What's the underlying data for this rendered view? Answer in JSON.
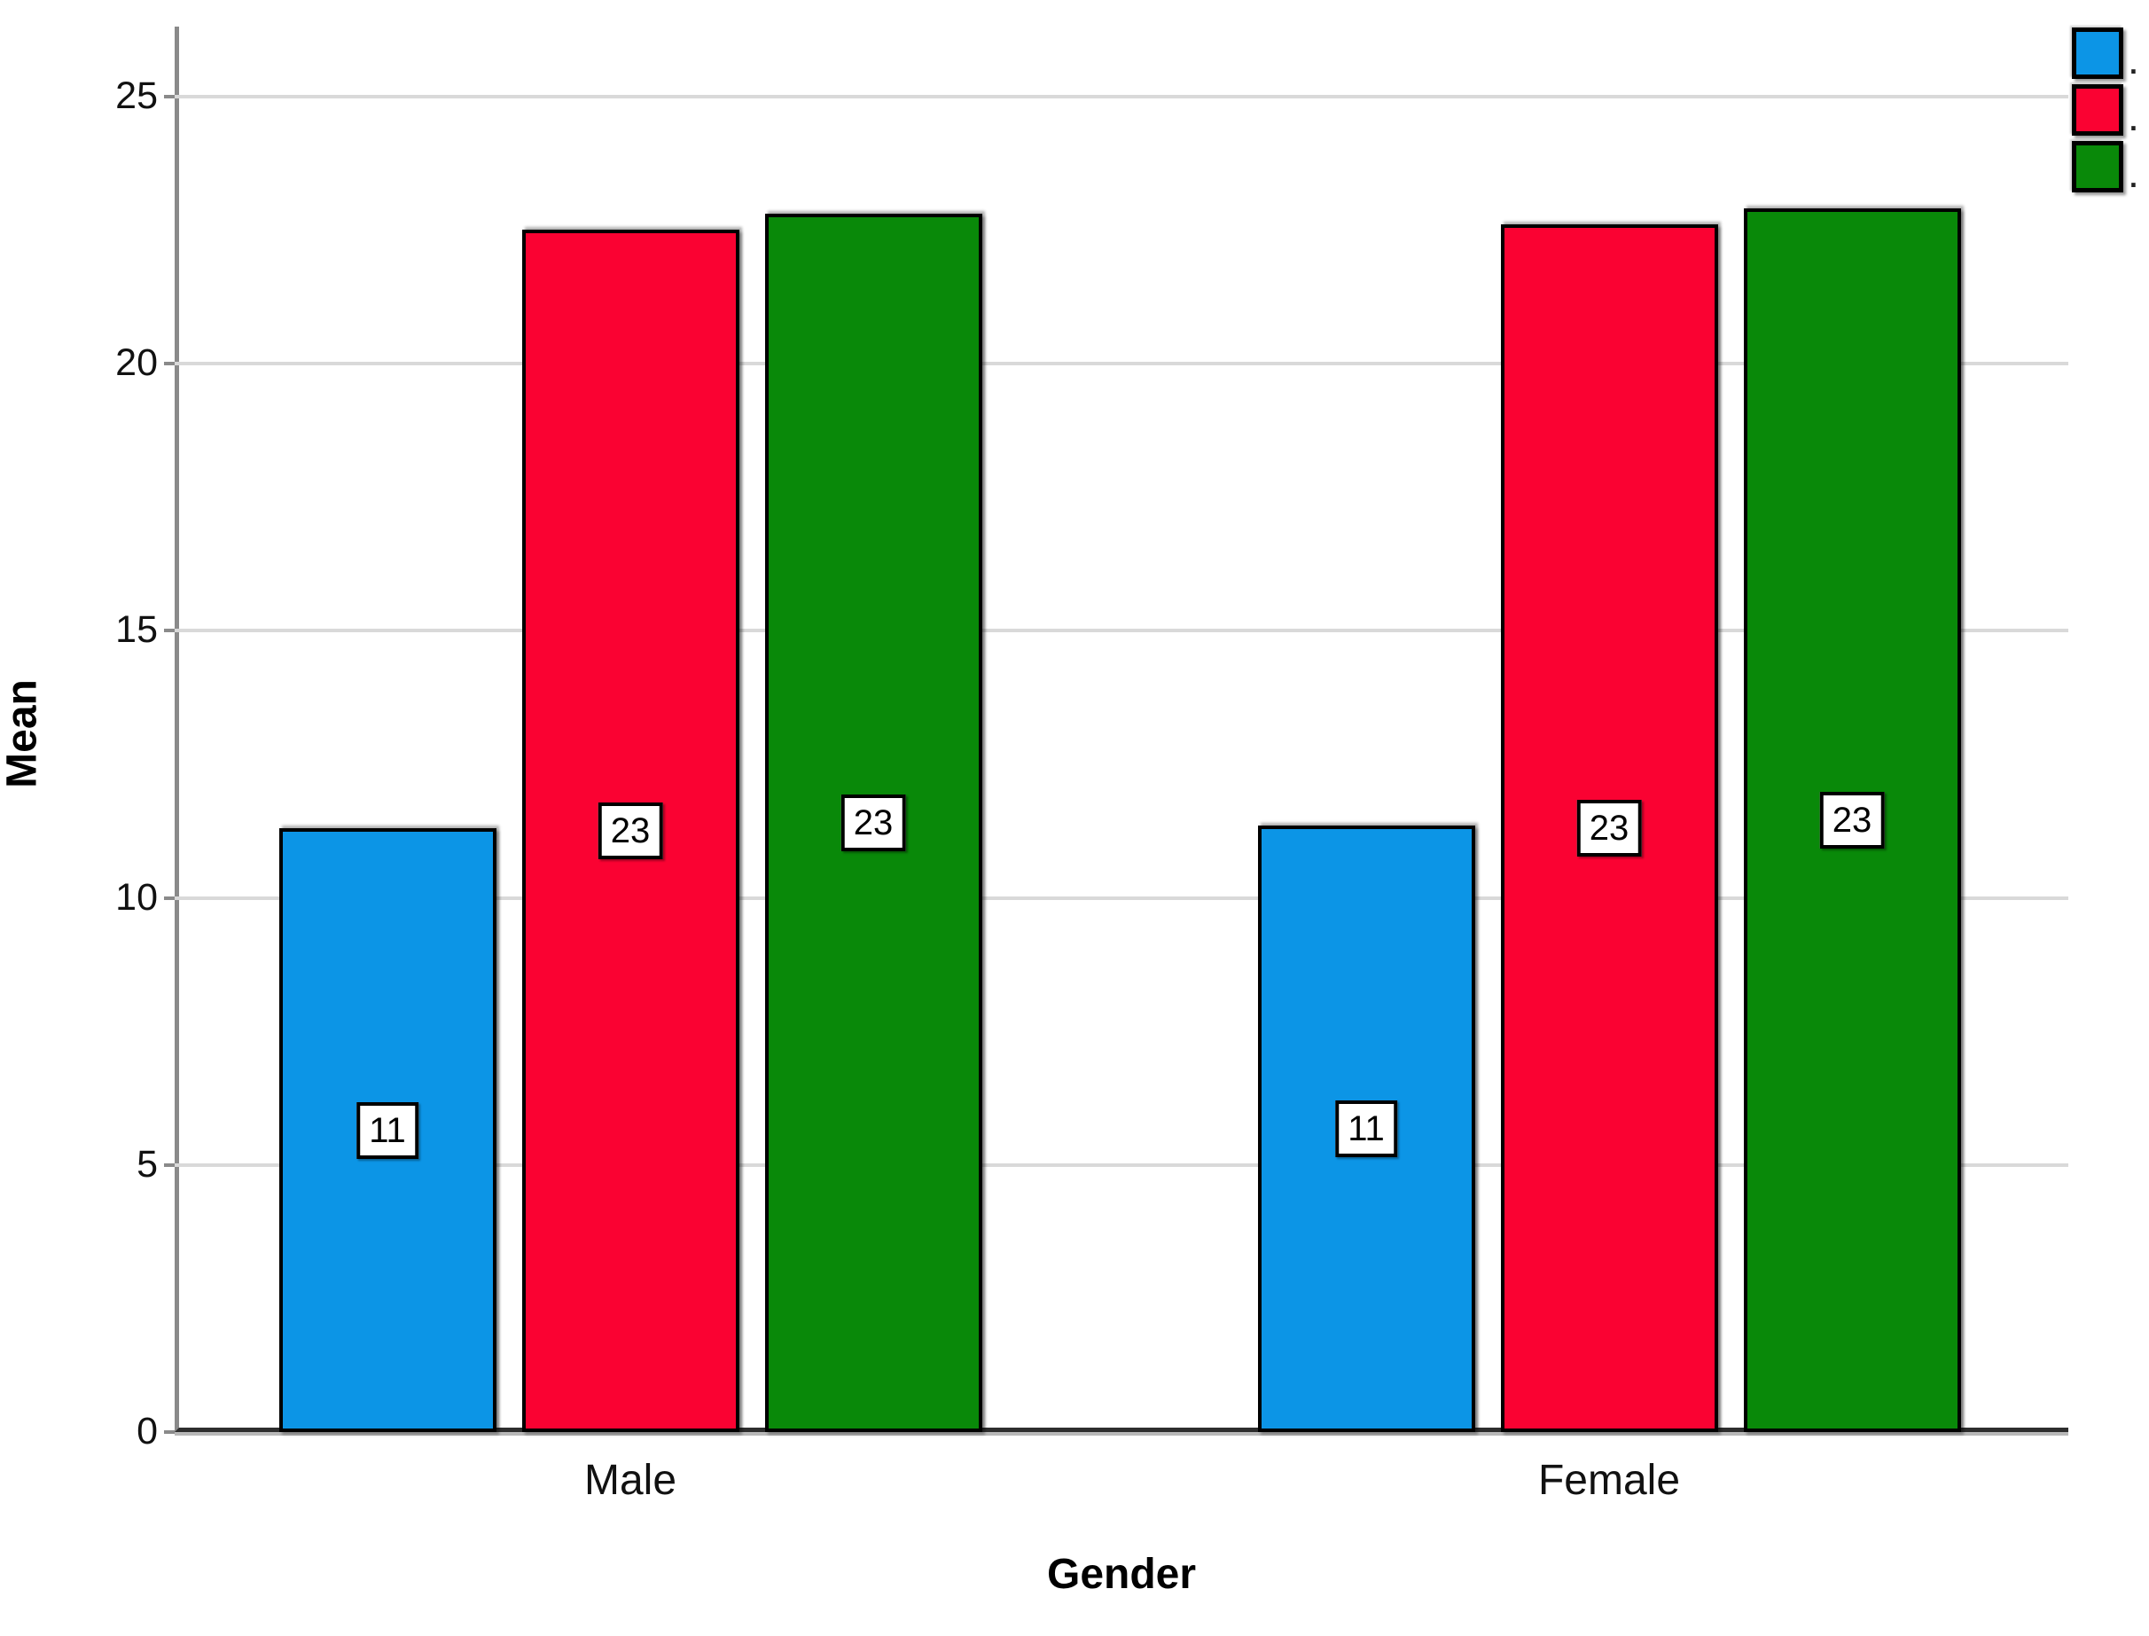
{
  "chart_data": {
    "type": "bar",
    "title": "",
    "xlabel": "Gender",
    "ylabel": "Mean",
    "categories": [
      "Male",
      "Female"
    ],
    "series": [
      {
        "legend_label": ".",
        "color": "#0C95E6",
        "values": [
          11.3,
          11.35
        ],
        "bar_labels": [
          "11",
          "11"
        ]
      },
      {
        "legend_label": ".",
        "color": "#FA0232",
        "values": [
          22.5,
          22.6
        ],
        "bar_labels": [
          "23",
          "23"
        ]
      },
      {
        "legend_label": ".",
        "color": "#098909",
        "values": [
          22.8,
          22.9
        ],
        "bar_labels": [
          "23",
          "23"
        ]
      }
    ],
    "y_ticks": [
      0,
      5,
      10,
      15,
      20,
      25
    ],
    "ylim": [
      0,
      26.3
    ],
    "grid": "horizontal-only",
    "legend_position": "top-right",
    "bar_border_color": "#000000",
    "gridline_color": "#d9d9d9"
  }
}
